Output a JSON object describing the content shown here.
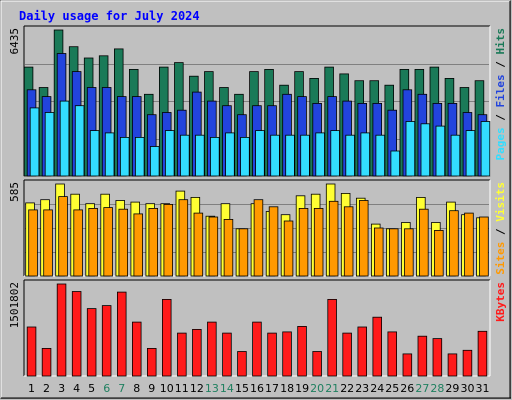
{
  "title": "Daily usage for July 2024",
  "colors": {
    "title": "#0000ff",
    "frame_bg": "#c0c0c0",
    "plot_bg": "#c0c0c0",
    "hits": "#1a7a58",
    "files": "#2244dd",
    "pages": "#33ddff",
    "visits": "#ffff33",
    "sites": "#ff9900",
    "kbytes": "#ff1a1a",
    "weekend_label": "#208060",
    "weekday_label": "#000000"
  },
  "chart_data": [
    {
      "type": "bar",
      "panel": "top",
      "ymax_label": "6435",
      "ylim": [
        0,
        6435
      ],
      "grid": true,
      "right_label": [
        "Pages",
        "Files",
        "Hits"
      ],
      "categories": [
        "1",
        "2",
        "3",
        "4",
        "5",
        "6",
        "7",
        "8",
        "9",
        "10",
        "11",
        "12",
        "13",
        "14",
        "15",
        "16",
        "17",
        "18",
        "19",
        "20",
        "21",
        "22",
        "23",
        "24",
        "25",
        "26",
        "27",
        "28",
        "29",
        "30",
        "31"
      ],
      "weekend_days": [
        "6",
        "7",
        "13",
        "14",
        "20",
        "21",
        "27",
        "28"
      ],
      "series": [
        {
          "name": "Hits",
          "values": [
            4800,
            3900,
            6435,
            5700,
            5200,
            5300,
            5600,
            4700,
            3600,
            4800,
            5000,
            4400,
            4600,
            3900,
            3600,
            4600,
            4700,
            4000,
            4600,
            4300,
            4800,
            4500,
            4200,
            4200,
            4000,
            4700,
            4700,
            4800,
            4300,
            3900,
            4200
          ]
        },
        {
          "name": "Files",
          "values": [
            3800,
            3500,
            5400,
            4600,
            3900,
            3900,
            3500,
            3500,
            2700,
            2800,
            2900,
            3700,
            3300,
            3100,
            2700,
            3100,
            3100,
            3600,
            3500,
            3200,
            3500,
            3300,
            3200,
            3200,
            2900,
            3800,
            3600,
            3200,
            3200,
            2800,
            2700
          ]
        },
        {
          "name": "Pages",
          "values": [
            3000,
            2800,
            3300,
            3100,
            2000,
            1900,
            1700,
            1700,
            1300,
            2000,
            1800,
            1800,
            1700,
            1900,
            1700,
            2000,
            1800,
            1800,
            1800,
            1900,
            2000,
            1800,
            1900,
            1800,
            1100,
            2400,
            2300,
            2200,
            1800,
            2000,
            2400
          ]
        }
      ]
    },
    {
      "type": "bar",
      "panel": "middle",
      "ymax_label": "585",
      "ylim": [
        0,
        585
      ],
      "grid": true,
      "right_label": [
        "Sites",
        "Visits"
      ],
      "categories": [
        "1",
        "2",
        "3",
        "4",
        "5",
        "6",
        "7",
        "8",
        "9",
        "10",
        "11",
        "12",
        "13",
        "14",
        "15",
        "16",
        "17",
        "18",
        "19",
        "20",
        "21",
        "22",
        "23",
        "24",
        "25",
        "26",
        "27",
        "28",
        "29",
        "30",
        "31"
      ],
      "series": [
        {
          "name": "Visits",
          "values": [
            465,
            485,
            585,
            520,
            460,
            520,
            480,
            470,
            460,
            460,
            540,
            500,
            380,
            460,
            300,
            460,
            410,
            390,
            510,
            520,
            585,
            525,
            495,
            330,
            300,
            340,
            500,
            340,
            470,
            390,
            370
          ]
        },
        {
          "name": "Sites",
          "values": [
            420,
            420,
            505,
            420,
            430,
            435,
            425,
            395,
            430,
            455,
            485,
            400,
            375,
            360,
            300,
            485,
            440,
            350,
            430,
            430,
            475,
            440,
            480,
            305,
            300,
            300,
            425,
            290,
            415,
            400,
            375
          ]
        }
      ]
    },
    {
      "type": "bar",
      "panel": "bottom",
      "ymax_label": "1501802",
      "ylim": [
        0,
        1501802
      ],
      "grid": false,
      "right_label": [
        "KBytes"
      ],
      "categories": [
        "1",
        "2",
        "3",
        "4",
        "5",
        "6",
        "7",
        "8",
        "9",
        "10",
        "11",
        "12",
        "13",
        "14",
        "15",
        "16",
        "17",
        "18",
        "19",
        "20",
        "21",
        "22",
        "23",
        "24",
        "25",
        "26",
        "27",
        "28",
        "29",
        "30",
        "31"
      ],
      "series": [
        {
          "name": "KBytes",
          "values": [
            800000,
            450000,
            1501802,
            1380000,
            1100000,
            1150000,
            1370000,
            880000,
            450000,
            1250000,
            700000,
            760000,
            880000,
            700000,
            400000,
            880000,
            700000,
            720000,
            810000,
            400000,
            1250000,
            700000,
            800000,
            960000,
            720000,
            360000,
            650000,
            610000,
            360000,
            420000,
            730000
          ]
        }
      ]
    }
  ]
}
